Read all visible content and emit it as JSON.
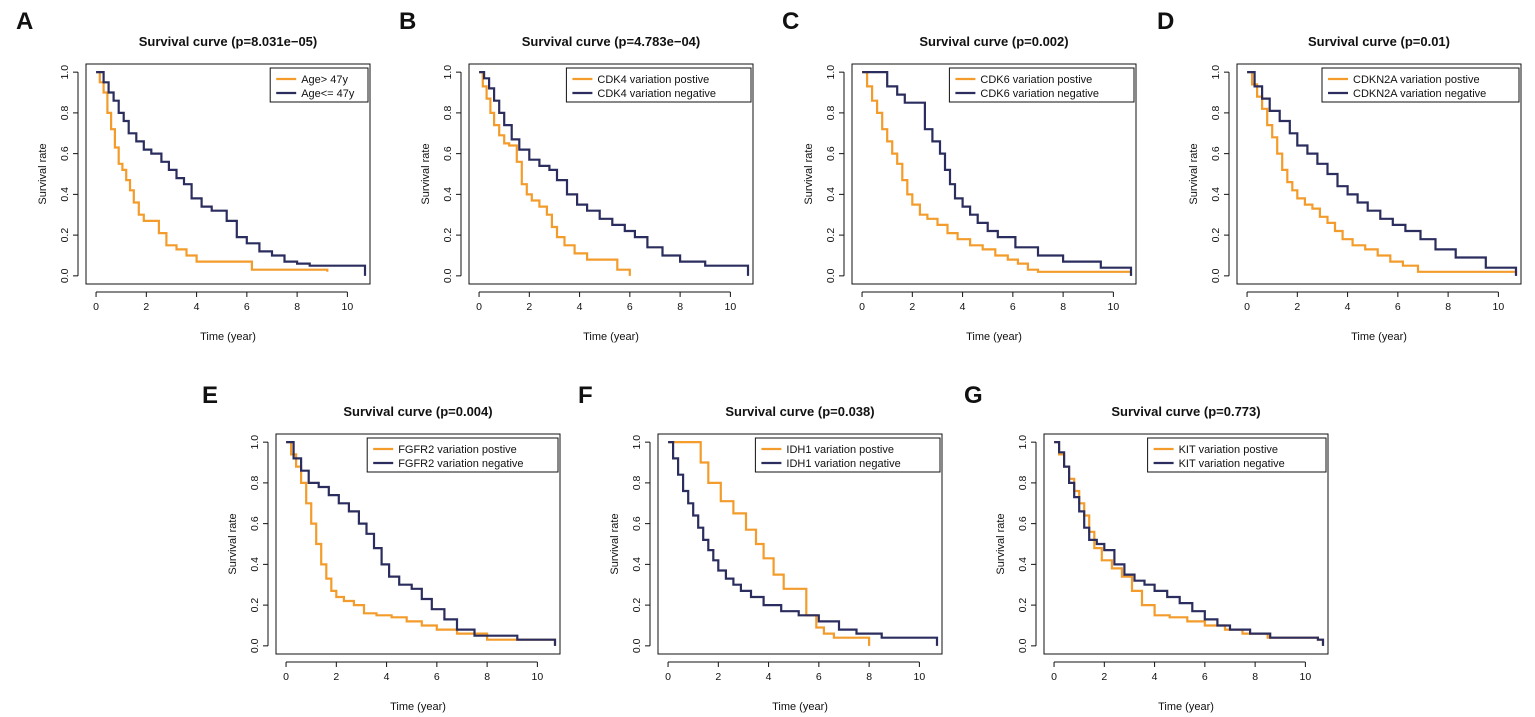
{
  "colors": {
    "positive": "#F39C2B",
    "negative": "#2B2D5E",
    "axis": "#111111"
  },
  "chart_data": [
    {
      "type": "line",
      "panel": "A",
      "title": "Survival curve (p=8.031e−05)",
      "xlabel": "Time (year)",
      "ylabel": "Survival rate",
      "xlim": [
        0,
        10.7
      ],
      "ylim": [
        0,
        1.0
      ],
      "xticks": [
        "0",
        "2",
        "4",
        "6",
        "8",
        "10"
      ],
      "yticks": [
        "0.0",
        "0.2",
        "0.4",
        "0.6",
        "0.8",
        "1.0"
      ],
      "legend": "top-right",
      "series": [
        {
          "name": "Age> 47y",
          "color": "#F39C2B",
          "x": [
            0,
            0.15,
            0.3,
            0.45,
            0.6,
            0.75,
            0.9,
            1.05,
            1.2,
            1.35,
            1.5,
            1.7,
            1.9,
            2.1,
            2.5,
            2.8,
            3.2,
            3.6,
            4.0,
            6.2,
            9.2
          ],
          "y": [
            1.0,
            0.95,
            0.9,
            0.8,
            0.72,
            0.63,
            0.55,
            0.52,
            0.47,
            0.42,
            0.36,
            0.3,
            0.27,
            0.27,
            0.21,
            0.15,
            0.13,
            0.1,
            0.07,
            0.03,
            0.02
          ]
        },
        {
          "name": "Age<= 47y",
          "color": "#2B2D5E",
          "x": [
            0,
            0.3,
            0.5,
            0.7,
            0.9,
            1.1,
            1.3,
            1.6,
            1.9,
            2.2,
            2.6,
            2.9,
            3.2,
            3.5,
            3.8,
            4.2,
            4.6,
            5.2,
            5.6,
            6.0,
            6.5,
            7.0,
            7.5,
            8.0,
            8.5,
            10.5,
            10.7
          ],
          "y": [
            1.0,
            0.95,
            0.9,
            0.86,
            0.8,
            0.76,
            0.7,
            0.66,
            0.62,
            0.6,
            0.56,
            0.52,
            0.48,
            0.45,
            0.38,
            0.34,
            0.32,
            0.27,
            0.19,
            0.16,
            0.12,
            0.1,
            0.07,
            0.06,
            0.05,
            0.05,
            0.0
          ]
        }
      ]
    },
    {
      "type": "line",
      "panel": "B",
      "title": "Survival curve (p=4.783e−04)",
      "xlabel": "Time (year)",
      "ylabel": "Survival rate",
      "xlim": [
        0,
        10.7
      ],
      "ylim": [
        0,
        1.0
      ],
      "xticks": [
        "0",
        "2",
        "4",
        "6",
        "8",
        "10"
      ],
      "yticks": [
        "0.0",
        "0.2",
        "0.4",
        "0.6",
        "0.8",
        "1.0"
      ],
      "legend": "top-right",
      "series": [
        {
          "name": "CDK4 variation postive",
          "color": "#F39C2B",
          "x": [
            0,
            0.15,
            0.3,
            0.45,
            0.6,
            0.8,
            1.0,
            1.2,
            1.5,
            1.7,
            1.9,
            2.1,
            2.4,
            2.7,
            2.9,
            3.1,
            3.4,
            3.8,
            4.3,
            5.0,
            5.5,
            6.0
          ],
          "y": [
            1.0,
            0.93,
            0.87,
            0.8,
            0.74,
            0.69,
            0.65,
            0.64,
            0.56,
            0.45,
            0.4,
            0.37,
            0.34,
            0.3,
            0.24,
            0.19,
            0.15,
            0.11,
            0.08,
            0.08,
            0.03,
            0.0
          ]
        },
        {
          "name": "CDK4 variation negative",
          "color": "#2B2D5E",
          "x": [
            0,
            0.2,
            0.4,
            0.6,
            0.8,
            1.0,
            1.3,
            1.6,
            2.0,
            2.4,
            2.8,
            3.1,
            3.5,
            3.9,
            4.3,
            4.8,
            5.3,
            5.8,
            6.2,
            6.7,
            7.3,
            8.0,
            9.0,
            10.5,
            10.7
          ],
          "y": [
            1.0,
            0.97,
            0.92,
            0.86,
            0.8,
            0.74,
            0.67,
            0.62,
            0.57,
            0.54,
            0.52,
            0.47,
            0.4,
            0.35,
            0.32,
            0.28,
            0.25,
            0.22,
            0.19,
            0.14,
            0.1,
            0.07,
            0.05,
            0.05,
            0.0
          ]
        }
      ]
    },
    {
      "type": "line",
      "panel": "C",
      "title": "Survival curve (p=0.002)",
      "xlabel": "Time (year)",
      "ylabel": "Survival rate",
      "xlim": [
        0,
        10.7
      ],
      "ylim": [
        0,
        1.0
      ],
      "xticks": [
        "0",
        "2",
        "4",
        "6",
        "8",
        "10"
      ],
      "yticks": [
        "0.0",
        "0.2",
        "0.4",
        "0.6",
        "0.8",
        "1.0"
      ],
      "legend": "top-right",
      "series": [
        {
          "name": "CDK6 variation postive",
          "color": "#F39C2B",
          "x": [
            0,
            0.2,
            0.4,
            0.6,
            0.8,
            1.0,
            1.2,
            1.4,
            1.6,
            1.8,
            2.0,
            2.3,
            2.6,
            3.0,
            3.4,
            3.8,
            4.3,
            4.8,
            5.3,
            5.8,
            6.2,
            6.6,
            7.0,
            10.5,
            10.7
          ],
          "y": [
            1.0,
            0.93,
            0.86,
            0.8,
            0.72,
            0.66,
            0.6,
            0.55,
            0.47,
            0.4,
            0.35,
            0.3,
            0.28,
            0.25,
            0.21,
            0.18,
            0.15,
            0.13,
            0.1,
            0.08,
            0.06,
            0.03,
            0.02,
            0.02,
            0.0
          ]
        },
        {
          "name": "CDK6 variation negative",
          "color": "#2B2D5E",
          "x": [
            0,
            1.0,
            1.4,
            1.7,
            2.0,
            2.5,
            2.8,
            3.1,
            3.3,
            3.5,
            3.7,
            4.0,
            4.3,
            4.6,
            5.0,
            5.4,
            6.1,
            7.0,
            8.0,
            9.5,
            10.5,
            10.7
          ],
          "y": [
            1.0,
            0.93,
            0.89,
            0.85,
            0.85,
            0.72,
            0.66,
            0.6,
            0.52,
            0.45,
            0.38,
            0.34,
            0.3,
            0.26,
            0.22,
            0.19,
            0.14,
            0.1,
            0.07,
            0.04,
            0.04,
            0.0
          ]
        }
      ]
    },
    {
      "type": "line",
      "panel": "D",
      "title": "Survival curve (p=0.01)",
      "xlabel": "Time (year)",
      "ylabel": "Survival rate",
      "xlim": [
        0,
        10.7
      ],
      "ylim": [
        0,
        1.0
      ],
      "xticks": [
        "0",
        "2",
        "4",
        "6",
        "8",
        "10"
      ],
      "yticks": [
        "0.0",
        "0.2",
        "0.4",
        "0.6",
        "0.8",
        "1.0"
      ],
      "legend": "top-right",
      "series": [
        {
          "name": "CDKN2A variation postive",
          "color": "#F39C2B",
          "x": [
            0,
            0.2,
            0.4,
            0.6,
            0.8,
            1.0,
            1.2,
            1.4,
            1.6,
            1.8,
            2.0,
            2.3,
            2.6,
            2.9,
            3.2,
            3.5,
            3.8,
            4.2,
            4.7,
            5.2,
            5.7,
            6.2,
            6.8,
            10.5,
            10.7
          ],
          "y": [
            1.0,
            0.94,
            0.88,
            0.82,
            0.74,
            0.68,
            0.6,
            0.52,
            0.46,
            0.42,
            0.38,
            0.35,
            0.33,
            0.29,
            0.26,
            0.22,
            0.18,
            0.15,
            0.13,
            0.1,
            0.07,
            0.05,
            0.02,
            0.02,
            0.0
          ]
        },
        {
          "name": "CDKN2A variation negative",
          "color": "#2B2D5E",
          "x": [
            0,
            0.3,
            0.6,
            0.9,
            1.3,
            1.7,
            2.0,
            2.4,
            2.8,
            3.2,
            3.6,
            4.0,
            4.4,
            4.8,
            5.3,
            5.8,
            6.3,
            6.9,
            7.5,
            8.3,
            9.5,
            10.5,
            10.7
          ],
          "y": [
            1.0,
            0.93,
            0.87,
            0.81,
            0.76,
            0.7,
            0.64,
            0.6,
            0.55,
            0.5,
            0.44,
            0.4,
            0.36,
            0.32,
            0.28,
            0.25,
            0.22,
            0.18,
            0.13,
            0.09,
            0.04,
            0.04,
            0.0
          ]
        }
      ]
    },
    {
      "type": "line",
      "panel": "E",
      "title": "Survival curve (p=0.004)",
      "xlabel": "Time (year)",
      "ylabel": "Survival rate",
      "xlim": [
        0,
        10.7
      ],
      "ylim": [
        0,
        1.0
      ],
      "xticks": [
        "0",
        "2",
        "4",
        "6",
        "8",
        "10"
      ],
      "yticks": [
        "0.0",
        "0.2",
        "0.4",
        "0.6",
        "0.8",
        "1.0"
      ],
      "legend": "top-right",
      "series": [
        {
          "name": "FGFR2 variation postive",
          "color": "#F39C2B",
          "x": [
            0,
            0.2,
            0.4,
            0.6,
            0.8,
            1.0,
            1.2,
            1.4,
            1.6,
            1.8,
            2.0,
            2.3,
            2.7,
            3.1,
            3.6,
            4.2,
            4.8,
            5.4,
            6.0,
            6.8,
            8.0,
            10.5,
            10.7
          ],
          "y": [
            1.0,
            0.94,
            0.88,
            0.8,
            0.7,
            0.6,
            0.5,
            0.4,
            0.33,
            0.27,
            0.24,
            0.22,
            0.2,
            0.16,
            0.15,
            0.14,
            0.12,
            0.1,
            0.08,
            0.06,
            0.03,
            0.03,
            0.0
          ]
        },
        {
          "name": "FGFR2 variation negative",
          "color": "#2B2D5E",
          "x": [
            0,
            0.3,
            0.6,
            0.9,
            1.3,
            1.7,
            2.1,
            2.5,
            2.9,
            3.2,
            3.5,
            3.8,
            4.1,
            4.5,
            5.0,
            5.4,
            5.8,
            6.3,
            6.8,
            7.5,
            8.5,
            9.2,
            10.5,
            10.7
          ],
          "y": [
            1.0,
            0.92,
            0.86,
            0.8,
            0.78,
            0.74,
            0.7,
            0.66,
            0.6,
            0.55,
            0.48,
            0.4,
            0.34,
            0.3,
            0.28,
            0.23,
            0.18,
            0.13,
            0.08,
            0.05,
            0.05,
            0.03,
            0.03,
            0.0
          ]
        }
      ]
    },
    {
      "type": "line",
      "panel": "F",
      "title": "Survival curve (p=0.038)",
      "xlabel": "Time (year)",
      "ylabel": "Survival rate",
      "xlim": [
        0,
        10.7
      ],
      "ylim": [
        0,
        1.0
      ],
      "xticks": [
        "0",
        "2",
        "4",
        "6",
        "8",
        "10"
      ],
      "yticks": [
        "0.0",
        "0.2",
        "0.4",
        "0.6",
        "0.8",
        "1.0"
      ],
      "legend": "top-right",
      "series": [
        {
          "name": "IDH1 variation postive",
          "color": "#F39C2B",
          "x": [
            0,
            1.3,
            1.6,
            2.1,
            2.6,
            3.1,
            3.5,
            3.8,
            4.2,
            4.6,
            5.5,
            5.9,
            6.2,
            6.6,
            7.0,
            7.9,
            8.0
          ],
          "y": [
            1.0,
            0.9,
            0.8,
            0.71,
            0.65,
            0.57,
            0.5,
            0.43,
            0.35,
            0.28,
            0.15,
            0.09,
            0.06,
            0.04,
            0.04,
            0.04,
            0.0
          ]
        },
        {
          "name": "IDH1 variation negative",
          "color": "#2B2D5E",
          "x": [
            0,
            0.2,
            0.4,
            0.6,
            0.8,
            1.0,
            1.2,
            1.4,
            1.6,
            1.8,
            2.0,
            2.3,
            2.6,
            2.9,
            3.3,
            3.8,
            4.5,
            5.2,
            6.0,
            6.8,
            7.5,
            8.5,
            10.5,
            10.7
          ],
          "y": [
            1.0,
            0.92,
            0.84,
            0.76,
            0.7,
            0.64,
            0.58,
            0.52,
            0.47,
            0.42,
            0.37,
            0.33,
            0.3,
            0.27,
            0.24,
            0.2,
            0.17,
            0.15,
            0.12,
            0.08,
            0.06,
            0.04,
            0.04,
            0.0
          ]
        }
      ]
    },
    {
      "type": "line",
      "panel": "G",
      "title": "Survival curve (p=0.773)",
      "xlabel": "Time (year)",
      "ylabel": "Survival rate",
      "xlim": [
        0,
        10.7
      ],
      "ylim": [
        0,
        1.0
      ],
      "xticks": [
        "0",
        "2",
        "4",
        "6",
        "8",
        "10"
      ],
      "yticks": [
        "0.0",
        "0.2",
        "0.4",
        "0.6",
        "0.8",
        "1.0"
      ],
      "legend": "top-right",
      "series": [
        {
          "name": "KIT variation postive",
          "color": "#F39C2B",
          "x": [
            0,
            0.2,
            0.4,
            0.6,
            0.8,
            1.0,
            1.2,
            1.4,
            1.6,
            1.9,
            2.3,
            2.7,
            3.1,
            3.5,
            4.0,
            4.6,
            5.3,
            6.0,
            6.8,
            7.5,
            8.5,
            10.5,
            10.7
          ],
          "y": [
            1.0,
            0.94,
            0.88,
            0.82,
            0.76,
            0.7,
            0.64,
            0.56,
            0.48,
            0.42,
            0.38,
            0.34,
            0.27,
            0.2,
            0.15,
            0.14,
            0.12,
            0.1,
            0.08,
            0.06,
            0.04,
            0.03,
            0.0
          ]
        },
        {
          "name": "KIT variation negative",
          "color": "#2B2D5E",
          "x": [
            0,
            0.2,
            0.4,
            0.6,
            0.8,
            1.0,
            1.2,
            1.4,
            1.7,
            2.0,
            2.4,
            2.8,
            3.2,
            3.6,
            4.0,
            4.5,
            5.0,
            5.5,
            6.0,
            6.5,
            7.0,
            7.8,
            8.6,
            10.5,
            10.7
          ],
          "y": [
            1.0,
            0.95,
            0.88,
            0.8,
            0.73,
            0.66,
            0.58,
            0.52,
            0.5,
            0.47,
            0.4,
            0.35,
            0.32,
            0.3,
            0.27,
            0.24,
            0.21,
            0.17,
            0.13,
            0.1,
            0.08,
            0.06,
            0.04,
            0.03,
            0.0
          ]
        }
      ]
    }
  ]
}
